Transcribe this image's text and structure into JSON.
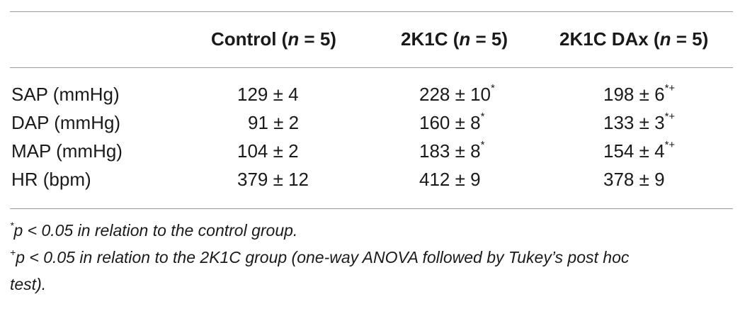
{
  "table": {
    "headers": {
      "col1_text": "Control (",
      "col1_n": "n",
      "col1_rest": " = 5)",
      "col2_text": "2K1C (",
      "col2_n": "n",
      "col2_rest": " = 5)",
      "col3_text": "2K1C DAx (",
      "col3_n": "n",
      "col3_rest": " = 5)"
    },
    "rows": [
      {
        "label": "SAP (mmHg)",
        "control": "129 ± 4",
        "control_mark": "",
        "k1c": "228 ± 10",
        "k1c_mark": "*",
        "dax": "198 ± 6",
        "dax_mark": "*+"
      },
      {
        "label": "DAP (mmHg)",
        "control": "91 ± 2",
        "control_mark": "",
        "k1c": "160 ± 8",
        "k1c_mark": "*",
        "dax": "133 ± 3",
        "dax_mark": "*+"
      },
      {
        "label": "MAP (mmHg)",
        "control": "104 ± 2",
        "control_mark": "",
        "k1c": "183 ± 8",
        "k1c_mark": "*",
        "dax": "154 ± 4",
        "dax_mark": "*+"
      },
      {
        "label": "HR (bpm)",
        "control": "379 ± 12",
        "control_mark": "",
        "k1c": "412 ± 9",
        "k1c_mark": "",
        "dax": "378 ± 9",
        "dax_mark": ""
      }
    ]
  },
  "footnotes": {
    "note1_mark": "*",
    "note1_text": "p < 0.05 in relation to the control group.",
    "note2_mark": "+",
    "note2_text": "p < 0.05 in relation to the 2K1C group (one-way ANOVA followed by Tukey’s post hoc",
    "note2_cont": "test)."
  }
}
